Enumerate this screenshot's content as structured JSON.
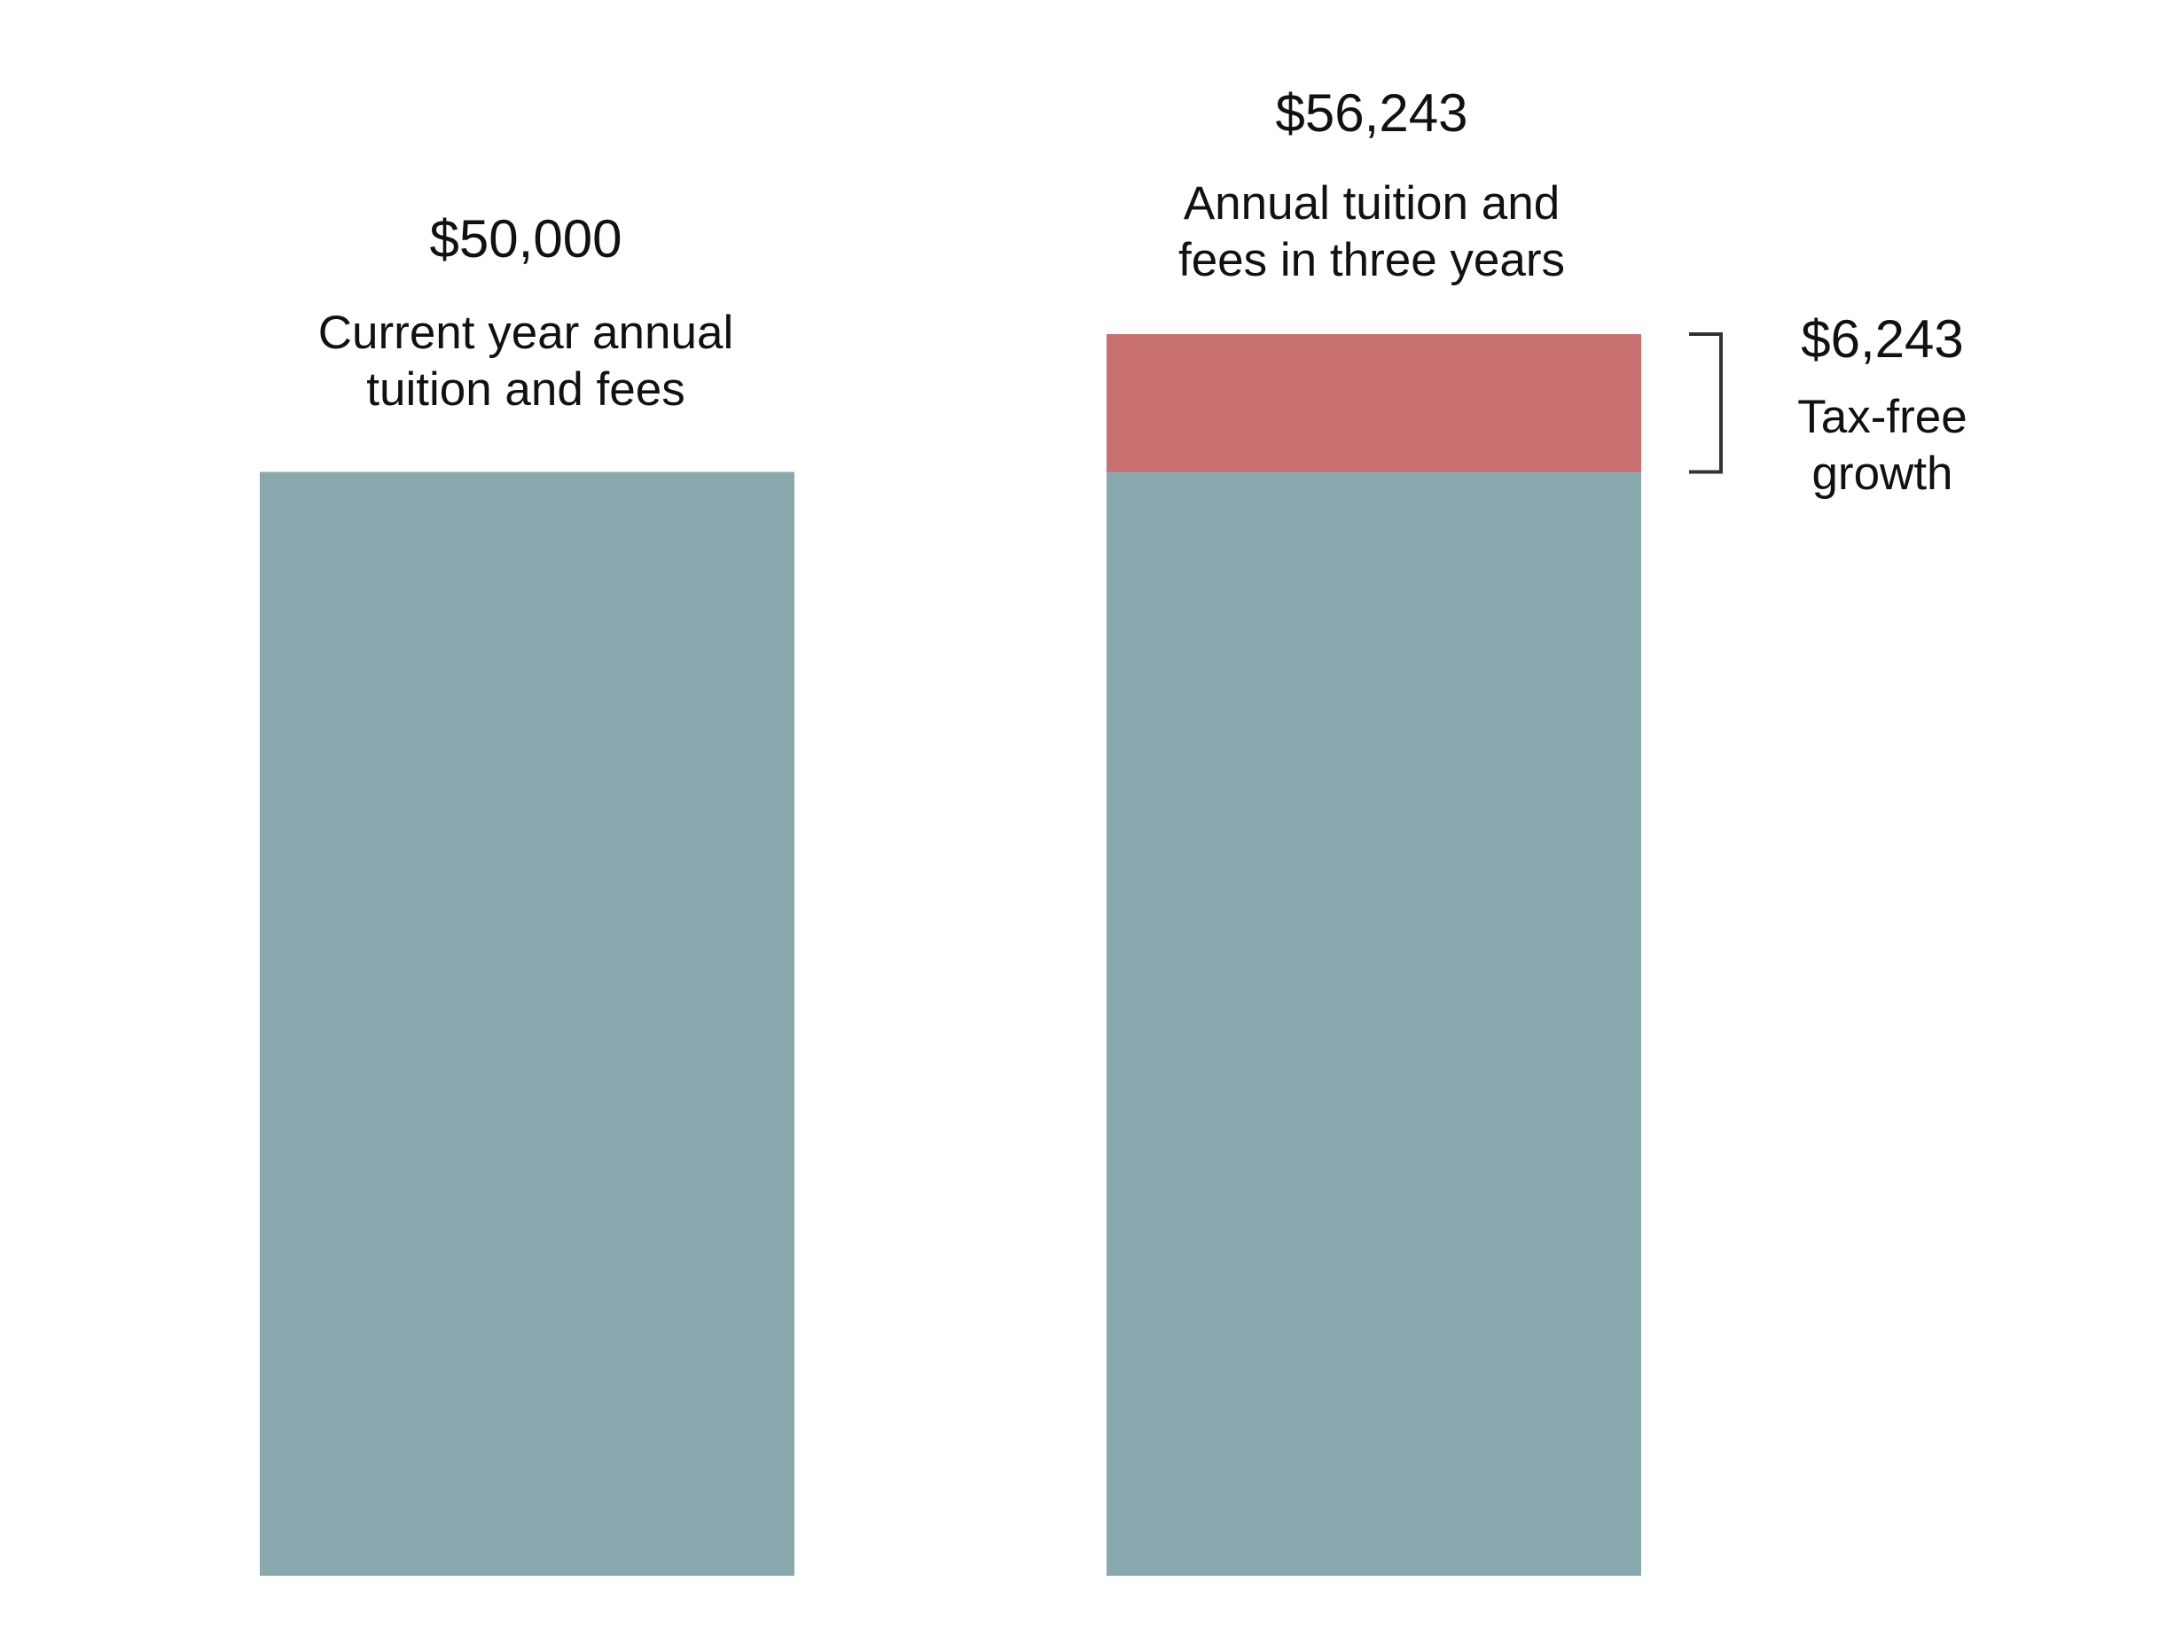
{
  "chart_data": {
    "type": "bar",
    "stacked": true,
    "categories": [
      "Current year",
      "In three years"
    ],
    "series": [
      {
        "values": [
          50000,
          50000
        ],
        "color": "#89a8ae"
      },
      {
        "values": [
          0,
          6243
        ],
        "color": "#c86f6f"
      }
    ],
    "bars": [
      {
        "total_label": "$50,000",
        "description": [
          "Current year annual",
          "tuition and fees"
        ]
      },
      {
        "total_label": "$56,243",
        "description": [
          "Annual tuition and",
          "fees in three years"
        ]
      }
    ],
    "annotation": {
      "value_label": "$6,243",
      "description": [
        "Tax-free",
        "growth"
      ],
      "bracket_color": "#333333"
    },
    "ylim": [
      0,
      56243
    ],
    "grid": false,
    "legend": "none"
  }
}
